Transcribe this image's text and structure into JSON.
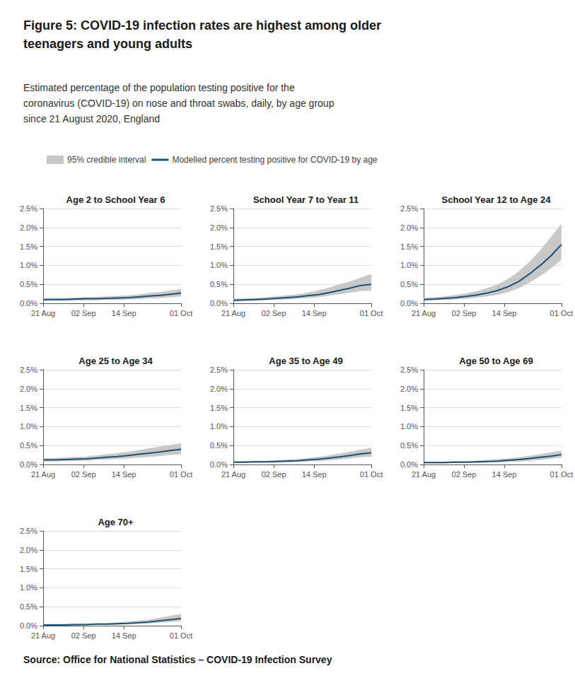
{
  "title": "Figure 5: COVID-19 infection rates are highest among older\nteenagers and young adults",
  "subtitle": "Estimated percentage of the population testing positive for the\ncoronavirus (COVID-19) on nose and throat swabs, daily, by age group\nsince 21 August 2020, England",
  "annotations": [
    "Source: Office for National Statistics – COVID-19 Infection Survey"
  ],
  "legend": "top left",
  "chart_data": [
    {
      "type": "line",
      "title": "Age 2 to School Year 6",
      "x": [
        0,
        3.153846,
        6.307692,
        9.461538,
        12.615385,
        15.769231,
        18.923077,
        22.076923,
        25.230769,
        28.384615,
        31.538462,
        34.692308,
        37.846154,
        41
      ],
      "series": [
        {
          "name": "95% credible interval",
          "type": "band",
          "color": "#c8c8c8",
          "low": [
            0.06,
            0.07,
            0.07,
            0.07,
            0.08,
            0.08,
            0.09,
            0.09,
            0.1,
            0.11,
            0.13,
            0.14,
            0.16,
            0.18
          ],
          "high": [
            0.14,
            0.14,
            0.14,
            0.15,
            0.16,
            0.17,
            0.18,
            0.19,
            0.21,
            0.24,
            0.27,
            0.3,
            0.34,
            0.38
          ]
        },
        {
          "name": "Modelled percent testing positive for COVID-19 by age",
          "type": "line",
          "color": "#1a5276",
          "values": [
            0.1,
            0.1,
            0.1,
            0.11,
            0.12,
            0.12,
            0.13,
            0.14,
            0.15,
            0.17,
            0.19,
            0.21,
            0.24,
            0.27
          ]
        }
      ],
      "xlim": [
        0,
        41
      ],
      "xticks": [
        {
          "value": 0,
          "label": "21 Aug"
        },
        {
          "value": 12,
          "label": "02 Sep"
        },
        {
          "value": 24,
          "label": "14 Sep"
        },
        {
          "value": 41,
          "label": "01 Oct"
        }
      ],
      "ylim": [
        0,
        2.5
      ],
      "yticks": [
        {
          "value": 0,
          "label": "0.0%"
        },
        {
          "value": 0.5,
          "label": "0.5%"
        },
        {
          "value": 1,
          "label": "1.0%"
        },
        {
          "value": 1.5,
          "label": "1.5%"
        },
        {
          "value": 2,
          "label": "2.0%"
        },
        {
          "value": 2.5,
          "label": "2.5%"
        }
      ],
      "grid": true
    },
    {
      "type": "line",
      "title": "School Year 7 to Year 11",
      "x": [
        0,
        3.153846,
        6.307692,
        9.461538,
        12.615385,
        15.769231,
        18.923077,
        22.076923,
        25.230769,
        28.384615,
        31.538462,
        34.692308,
        37.846154,
        41
      ],
      "series": [
        {
          "name": "95% credible interval",
          "type": "band",
          "color": "#c8c8c8",
          "low": [
            0.05,
            0.06,
            0.07,
            0.08,
            0.09,
            0.1,
            0.12,
            0.14,
            0.16,
            0.2,
            0.24,
            0.28,
            0.32,
            0.34
          ],
          "high": [
            0.12,
            0.13,
            0.14,
            0.16,
            0.18,
            0.21,
            0.24,
            0.28,
            0.34,
            0.41,
            0.5,
            0.58,
            0.67,
            0.78
          ]
        },
        {
          "name": "Modelled percent testing positive for COVID-19 by age",
          "type": "line",
          "color": "#1a5276",
          "values": [
            0.08,
            0.09,
            0.1,
            0.11,
            0.13,
            0.15,
            0.17,
            0.2,
            0.23,
            0.28,
            0.34,
            0.4,
            0.47,
            0.5
          ]
        }
      ],
      "xlim": [
        0,
        41
      ],
      "xticks": [
        {
          "value": 0,
          "label": "21 Aug"
        },
        {
          "value": 12,
          "label": "02 Sep"
        },
        {
          "value": 24,
          "label": "14 Sep"
        },
        {
          "value": 41,
          "label": "01 Oct"
        }
      ],
      "ylim": [
        0,
        2.5
      ],
      "yticks": [
        {
          "value": 0,
          "label": "0.0%"
        },
        {
          "value": 0.5,
          "label": "0.5%"
        },
        {
          "value": 1,
          "label": "1.0%"
        },
        {
          "value": 1.5,
          "label": "1.5%"
        },
        {
          "value": 2,
          "label": "2.0%"
        },
        {
          "value": 2.5,
          "label": "2.5%"
        }
      ],
      "grid": true
    },
    {
      "type": "line",
      "title": "School Year 12 to Age 24",
      "x": [
        0,
        3.153846,
        6.307692,
        9.461538,
        12.615385,
        15.769231,
        18.923077,
        22.076923,
        25.230769,
        28.384615,
        31.538462,
        34.692308,
        37.846154,
        41
      ],
      "series": [
        {
          "name": "95% credible interval",
          "type": "band",
          "color": "#c8c8c8",
          "low": [
            0.07,
            0.08,
            0.09,
            0.1,
            0.12,
            0.15,
            0.18,
            0.23,
            0.3,
            0.4,
            0.55,
            0.72,
            0.92,
            1.15
          ],
          "high": [
            0.14,
            0.16,
            0.18,
            0.22,
            0.26,
            0.32,
            0.4,
            0.5,
            0.65,
            0.85,
            1.1,
            1.4,
            1.75,
            2.1
          ]
        },
        {
          "name": "Modelled percent testing positive for COVID-19 by age",
          "type": "line",
          "color": "#1a5276",
          "values": [
            0.1,
            0.11,
            0.13,
            0.15,
            0.18,
            0.22,
            0.27,
            0.34,
            0.44,
            0.58,
            0.78,
            1.0,
            1.25,
            1.55
          ]
        }
      ],
      "xlim": [
        0,
        41
      ],
      "xticks": [
        {
          "value": 0,
          "label": "21 Aug"
        },
        {
          "value": 12,
          "label": "02 Sep"
        },
        {
          "value": 24,
          "label": "14 Sep"
        },
        {
          "value": 41,
          "label": "01 Oct"
        }
      ],
      "ylim": [
        0,
        2.5
      ],
      "yticks": [
        {
          "value": 0,
          "label": "0.0%"
        },
        {
          "value": 0.5,
          "label": "0.5%"
        },
        {
          "value": 1,
          "label": "1.0%"
        },
        {
          "value": 1.5,
          "label": "1.5%"
        },
        {
          "value": 2,
          "label": "2.0%"
        },
        {
          "value": 2.5,
          "label": "2.5%"
        }
      ],
      "grid": true
    },
    {
      "type": "line",
      "title": "Age 25 to Age 34",
      "x": [
        0,
        3.153846,
        6.307692,
        9.461538,
        12.615385,
        15.769231,
        18.923077,
        22.076923,
        25.230769,
        28.384615,
        31.538462,
        34.692308,
        37.846154,
        41
      ],
      "series": [
        {
          "name": "95% credible interval",
          "type": "band",
          "color": "#c8c8c8",
          "low": [
            0.08,
            0.08,
            0.09,
            0.1,
            0.1,
            0.12,
            0.13,
            0.14,
            0.16,
            0.18,
            0.2,
            0.22,
            0.25,
            0.27
          ],
          "high": [
            0.17,
            0.17,
            0.18,
            0.2,
            0.21,
            0.24,
            0.27,
            0.3,
            0.34,
            0.38,
            0.43,
            0.47,
            0.52,
            0.56
          ]
        },
        {
          "name": "Modelled percent testing positive for COVID-19 by age",
          "type": "line",
          "color": "#1a5276",
          "values": [
            0.12,
            0.12,
            0.13,
            0.14,
            0.15,
            0.17,
            0.19,
            0.21,
            0.24,
            0.27,
            0.3,
            0.33,
            0.37,
            0.4
          ]
        }
      ],
      "xlim": [
        0,
        41
      ],
      "xticks": [
        {
          "value": 0,
          "label": "21 Aug"
        },
        {
          "value": 12,
          "label": "02 Sep"
        },
        {
          "value": 24,
          "label": "14 Sep"
        },
        {
          "value": 41,
          "label": "01 Oct"
        }
      ],
      "ylim": [
        0,
        2.5
      ],
      "yticks": [
        {
          "value": 0,
          "label": "0.0%"
        },
        {
          "value": 0.5,
          "label": "0.5%"
        },
        {
          "value": 1,
          "label": "1.0%"
        },
        {
          "value": 1.5,
          "label": "1.5%"
        },
        {
          "value": 2,
          "label": "2.0%"
        },
        {
          "value": 2.5,
          "label": "2.5%"
        }
      ],
      "grid": true
    },
    {
      "type": "line",
      "title": "Age 35 to Age 49",
      "x": [
        0,
        3.153846,
        6.307692,
        9.461538,
        12.615385,
        15.769231,
        18.923077,
        22.076923,
        25.230769,
        28.384615,
        31.538462,
        34.692308,
        37.846154,
        41
      ],
      "series": [
        {
          "name": "95% credible interval",
          "type": "band",
          "color": "#c8c8c8",
          "low": [
            0.04,
            0.04,
            0.04,
            0.05,
            0.05,
            0.06,
            0.07,
            0.08,
            0.09,
            0.11,
            0.13,
            0.16,
            0.19,
            0.21
          ],
          "high": [
            0.09,
            0.09,
            0.1,
            0.1,
            0.11,
            0.13,
            0.14,
            0.17,
            0.2,
            0.24,
            0.29,
            0.34,
            0.39,
            0.44
          ]
        },
        {
          "name": "Modelled percent testing positive for COVID-19 by age",
          "type": "line",
          "color": "#1a5276",
          "values": [
            0.06,
            0.06,
            0.07,
            0.07,
            0.08,
            0.09,
            0.1,
            0.12,
            0.14,
            0.17,
            0.2,
            0.24,
            0.28,
            0.31
          ]
        }
      ],
      "xlim": [
        0,
        41
      ],
      "xticks": [
        {
          "value": 0,
          "label": "21 Aug"
        },
        {
          "value": 12,
          "label": "02 Sep"
        },
        {
          "value": 24,
          "label": "14 Sep"
        },
        {
          "value": 41,
          "label": "01 Oct"
        }
      ],
      "ylim": [
        0,
        2.5
      ],
      "yticks": [
        {
          "value": 0,
          "label": "0.0%"
        },
        {
          "value": 0.5,
          "label": "0.5%"
        },
        {
          "value": 1,
          "label": "1.0%"
        },
        {
          "value": 1.5,
          "label": "1.5%"
        },
        {
          "value": 2,
          "label": "2.0%"
        },
        {
          "value": 2.5,
          "label": "2.5%"
        }
      ],
      "grid": true
    },
    {
      "type": "line",
      "title": "Age 50 to Age 69",
      "x": [
        0,
        3.153846,
        6.307692,
        9.461538,
        12.615385,
        15.769231,
        18.923077,
        22.076923,
        25.230769,
        28.384615,
        31.538462,
        34.692308,
        37.846154,
        41
      ],
      "series": [
        {
          "name": "95% credible interval",
          "type": "band",
          "color": "#c8c8c8",
          "low": [
            0.03,
            0.03,
            0.03,
            0.04,
            0.04,
            0.04,
            0.05,
            0.06,
            0.07,
            0.08,
            0.1,
            0.12,
            0.15,
            0.18
          ],
          "high": [
            0.07,
            0.07,
            0.08,
            0.09,
            0.09,
            0.1,
            0.12,
            0.14,
            0.16,
            0.19,
            0.23,
            0.27,
            0.32,
            0.37
          ]
        },
        {
          "name": "Modelled percent testing positive for COVID-19 by age",
          "type": "line",
          "color": "#1a5276",
          "values": [
            0.05,
            0.05,
            0.05,
            0.06,
            0.06,
            0.07,
            0.08,
            0.09,
            0.11,
            0.13,
            0.16,
            0.19,
            0.22,
            0.26
          ]
        }
      ],
      "xlim": [
        0,
        41
      ],
      "xticks": [
        {
          "value": 0,
          "label": "21 Aug"
        },
        {
          "value": 12,
          "label": "02 Sep"
        },
        {
          "value": 24,
          "label": "14 Sep"
        },
        {
          "value": 41,
          "label": "01 Oct"
        }
      ],
      "ylim": [
        0,
        2.5
      ],
      "yticks": [
        {
          "value": 0,
          "label": "0.0%"
        },
        {
          "value": 0.5,
          "label": "0.5%"
        },
        {
          "value": 1,
          "label": "1.0%"
        },
        {
          "value": 1.5,
          "label": "1.5%"
        },
        {
          "value": 2,
          "label": "2.0%"
        },
        {
          "value": 2.5,
          "label": "2.5%"
        }
      ],
      "grid": true
    },
    {
      "type": "line",
      "title": "Age 70+",
      "x": [
        0,
        3.153846,
        6.307692,
        9.461538,
        12.615385,
        15.769231,
        18.923077,
        22.076923,
        25.230769,
        28.384615,
        31.538462,
        34.692308,
        37.846154,
        41
      ],
      "series": [
        {
          "name": "95% credible interval",
          "type": "band",
          "color": "#c8c8c8",
          "low": [
            0.01,
            0.01,
            0.01,
            0.01,
            0.02,
            0.02,
            0.02,
            0.03,
            0.04,
            0.05,
            0.06,
            0.08,
            0.1,
            0.12
          ],
          "high": [
            0.04,
            0.04,
            0.04,
            0.05,
            0.05,
            0.06,
            0.07,
            0.09,
            0.11,
            0.13,
            0.16,
            0.21,
            0.26,
            0.31
          ]
        },
        {
          "name": "Modelled percent testing positive for COVID-19 by age",
          "type": "line",
          "color": "#1a5276",
          "values": [
            0.02,
            0.02,
            0.02,
            0.03,
            0.03,
            0.04,
            0.04,
            0.05,
            0.06,
            0.08,
            0.1,
            0.13,
            0.16,
            0.19
          ]
        }
      ],
      "xlim": [
        0,
        41
      ],
      "xticks": [
        {
          "value": 0,
          "label": "21 Aug"
        },
        {
          "value": 12,
          "label": "02 Sep"
        },
        {
          "value": 24,
          "label": "14 Sep"
        },
        {
          "value": 41,
          "label": "01 Oct"
        }
      ],
      "ylim": [
        0,
        2.5
      ],
      "yticks": [
        {
          "value": 0,
          "label": "0.0%"
        },
        {
          "value": 0.5,
          "label": "0.5%"
        },
        {
          "value": 1,
          "label": "1.0%"
        },
        {
          "value": 1.5,
          "label": "1.5%"
        },
        {
          "value": 2,
          "label": "2.0%"
        },
        {
          "value": 2.5,
          "label": "2.5%"
        }
      ],
      "grid": true
    }
  ]
}
